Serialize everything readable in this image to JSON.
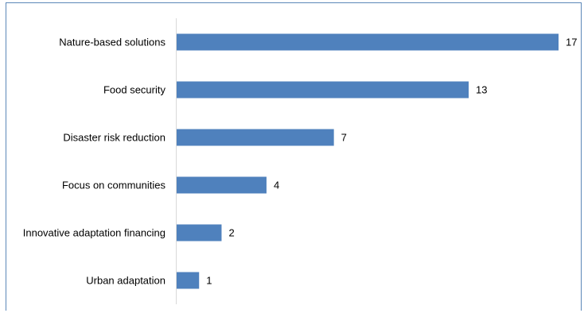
{
  "chart_data": {
    "type": "bar",
    "orientation": "horizontal",
    "categories": [
      "Nature-based solutions",
      "Food security",
      "Disaster risk reduction",
      "Focus on communities",
      "Innovative adaptation financing",
      "Urban adaptation"
    ],
    "values": [
      17,
      13,
      7,
      4,
      2,
      1
    ],
    "title": "",
    "xlabel": "",
    "ylabel": "",
    "xlim": [
      0,
      17
    ],
    "grid": false,
    "legend": "none",
    "data_labels": true,
    "bar_color": "#4f81bd",
    "axis_color": "#d9d9d9",
    "frame_color": "#5b87b8"
  }
}
